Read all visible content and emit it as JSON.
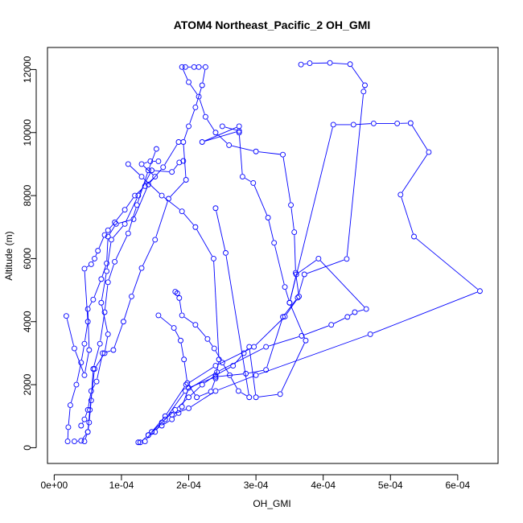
{
  "chart_data": {
    "type": "line",
    "title": "ATOM4 Northeast_Pacific_2 OH_GMI",
    "xlabel": "OH_GMI",
    "ylabel": "Altitude (m)",
    "xlim": [
      -1e-05,
      0.00066
    ],
    "ylim": [
      -500,
      12700
    ],
    "x_ticks": [
      0,
      0.0001,
      0.0002,
      0.0003,
      0.0004,
      0.0005,
      0.0006
    ],
    "x_tick_labels": [
      "0e+00",
      "1e-04",
      "2e-04",
      "3e-04",
      "4e-04",
      "5e-04",
      "6e-04"
    ],
    "y_ticks": [
      0,
      2000,
      4000,
      6000,
      8000,
      10000,
      12000
    ],
    "y_tick_labels": [
      "0",
      "2000",
      "4000",
      "6000",
      "8000",
      "10000",
      "12000"
    ],
    "color": "#0000ff",
    "marker": "open-circle",
    "series": [
      {
        "x": [
          2e-05,
          2.1e-05,
          2.4e-05,
          3.3e-05,
          4e-05,
          4.5e-05,
          5e-05,
          4.5e-05,
          5.5e-05,
          6e-05,
          6.5e-05,
          7.5e-05,
          8e-05,
          9e-05,
          0.000105,
          0.00012,
          0.000135,
          0.00015,
          0.00013,
          0.000143,
          0.000155
        ],
        "y": [
          200,
          650,
          1350,
          2000,
          2700,
          3300,
          4000,
          5680,
          5820,
          6000,
          6250,
          6750,
          6900,
          7150,
          7550,
          8000,
          8300,
          8600,
          9000,
          9090,
          9090
        ]
      },
      {
        "x": [
          3e-05,
          4e-05,
          5e-05,
          5.2e-05,
          5.5e-05,
          5.8e-05,
          6.8e-05,
          7.5e-05,
          8e-05,
          9e-05,
          0.00011,
          0.000123,
          0.00014,
          0.000152
        ],
        "y": [
          200,
          220,
          500,
          800,
          1500,
          2500,
          3300,
          4300,
          5250,
          5900,
          6800,
          7700,
          8800,
          9480
        ]
      },
      {
        "x": [
          4.5e-05,
          5e-05,
          5.3e-05,
          6e-05,
          7.5e-05,
          8e-05,
          7e-05,
          7.8e-05,
          8.5e-05,
          0.000105,
          0.000125,
          0.000145,
          0.000175,
          0.000186,
          0.000192
        ],
        "y": [
          200,
          500,
          1200,
          2500,
          3000,
          3600,
          4600,
          5600,
          6600,
          7100,
          8000,
          8800,
          8750,
          9050,
          9100
        ]
      },
      {
        "x": [
          1.8e-05,
          3e-05,
          4.5e-05,
          5.2e-05,
          5e-05,
          5.8e-05,
          7e-05,
          7.8e-05,
          8e-05,
          9.2e-05,
          0.000118,
          0.00014,
          0.000162,
          0.000185
        ],
        "y": [
          4180,
          3150,
          2300,
          3100,
          4400,
          4700,
          5350,
          5850,
          6700,
          7100,
          7250,
          8350,
          8900,
          9700
        ]
      },
      {
        "x": [
          4e-05,
          4.5e-05,
          5e-05,
          5.5e-05,
          6.3e-05,
          7.2e-05,
          8.8e-05,
          0.000103,
          0.000115,
          0.00013,
          0.00015,
          0.00017,
          0.000196,
          0.000192,
          0.0002,
          0.00021,
          0.00022,
          0.000225,
          0.000215,
          0.000208,
          0.000195
        ],
        "y": [
          700,
          900,
          1200,
          1800,
          2100,
          3000,
          3100,
          4000,
          4800,
          5700,
          6600,
          7900,
          8500,
          9700,
          10200,
          10800,
          11500,
          12080,
          12080,
          12080,
          12080
        ]
      },
      {
        "x": [
          0.000128,
          0.00014,
          0.00015,
          0.00016,
          0.00018,
          0.0002,
          0.00022,
          0.00024,
          0.000266,
          0.000282,
          0.00029,
          0.0003,
          0.000336,
          0.000374,
          0.00035,
          0.000343,
          0.000327,
          0.000318,
          0.000296,
          0.00028,
          0.000275,
          0.000275,
          0.00022,
          0.000275,
          0.00025
        ],
        "y": [
          170,
          400,
          500,
          800,
          1200,
          1600,
          2000,
          2300,
          2600,
          3000,
          3200,
          1600,
          1700,
          3400,
          4600,
          5100,
          6500,
          7300,
          8400,
          8600,
          10000,
          10200,
          9700,
          10050,
          10200
        ]
      },
      {
        "x": [
          0.000145,
          0.000165,
          0.000196,
          0.00024,
          0.000297,
          0.000343,
          0.000364,
          0.000359,
          0.000357,
          0.000352,
          0.00034,
          0.0003,
          0.00026,
          0.00024,
          0.000225,
          0.000215,
          0.0002,
          0.00019
        ],
        "y": [
          500,
          1000,
          2000,
          2600,
          3200,
          4160,
          4800,
          5550,
          6840,
          7700,
          9300,
          9400,
          9600,
          10000,
          10500,
          11140,
          11600,
          12080
        ]
      },
      {
        "x": [
          0.00014,
          0.000165,
          0.000195,
          0.000242,
          0.000315,
          0.000368,
          0.000412,
          0.000436,
          0.000447,
          0.000464,
          0.000393,
          0.00036,
          0.00035,
          0.000415,
          0.000445,
          0.000475,
          0.00051,
          0.00053,
          0.000557,
          0.000515,
          0.000535,
          0.000633,
          0.00047,
          0.0003,
          0.00024,
          0.0002,
          0.000175
        ],
        "y": [
          400,
          900,
          1800,
          2400,
          3200,
          3550,
          3900,
          4150,
          4300,
          4400,
          6000,
          5500,
          4600,
          10250,
          10250,
          10290,
          10290,
          10300,
          9380,
          8030,
          6700,
          4970,
          3600,
          2300,
          1800,
          1250,
          1050
        ]
      },
      {
        "x": [
          0.000155,
          0.000178,
          0.000188,
          0.000193,
          0.000198,
          0.000212,
          0.000233,
          0.00024,
          0.000245,
          0.000237,
          0.00021,
          0.00019,
          0.00016,
          0.00013,
          0.00011
        ],
        "y": [
          4200,
          3800,
          3400,
          2800,
          2050,
          1600,
          1780,
          2200,
          2800,
          6000,
          7000,
          7500,
          8000,
          8600,
          9000
        ]
      },
      {
        "x": [
          0.000125,
          0.000135,
          0.000145,
          0.00016,
          0.000175,
          0.000185,
          0.00019,
          0.0002,
          0.00024,
          0.000285,
          0.000315,
          0.00034,
          0.000362,
          0.000372,
          0.000435,
          0.00046,
          0.000462,
          0.00044,
          0.00041,
          0.00038,
          0.000367
        ],
        "y": [
          170,
          200,
          500,
          700,
          900,
          1100,
          1300,
          1900,
          2250,
          2350,
          2470,
          4150,
          4760,
          5500,
          5990,
          11300,
          11500,
          12170,
          12210,
          12200,
          12160
        ]
      },
      {
        "x": [
          0.00018,
          0.000183,
          0.000186,
          0.00019,
          0.00021,
          0.000228,
          0.000238,
          0.00025,
          0.000261,
          0.000274,
          0.00029,
          0.000255,
          0.00024
        ],
        "y": [
          4950,
          4900,
          4750,
          4200,
          3900,
          3450,
          3150,
          2700,
          2300,
          1800,
          1600,
          6180,
          7600
        ]
      }
    ]
  }
}
